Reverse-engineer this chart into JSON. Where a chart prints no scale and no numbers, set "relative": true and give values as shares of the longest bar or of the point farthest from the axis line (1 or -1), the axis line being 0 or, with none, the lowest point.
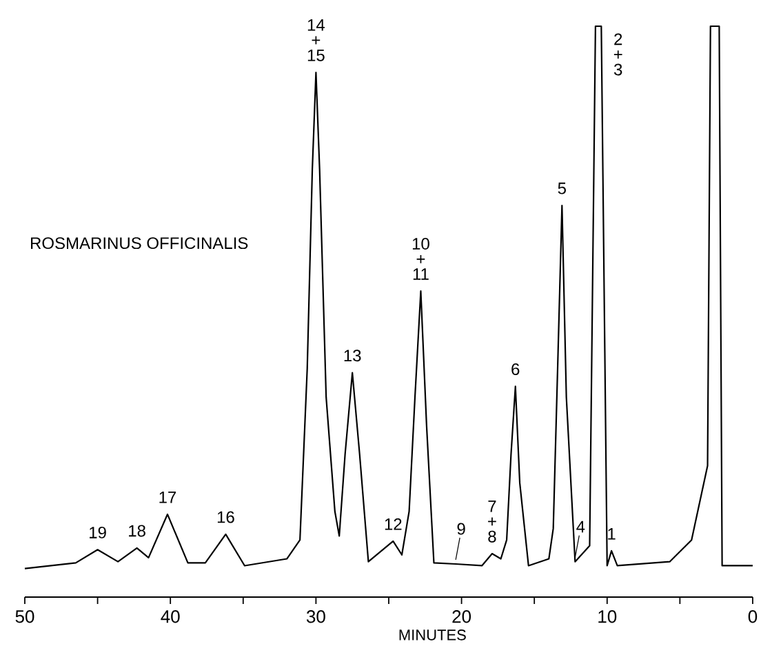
{
  "chart_data": {
    "type": "line",
    "relative": true,
    "title": "ROSMARINUS OFFICINALIS",
    "xlabel": "MINUTES",
    "xlim": [
      50,
      0
    ],
    "xticks": [
      50,
      {
        "value": 45,
        "label": null
      },
      40,
      {
        "value": 35,
        "label": null
      },
      30,
      {
        "value": 25,
        "label": null
      },
      20,
      {
        "value": 15,
        "label": null
      },
      10,
      {
        "value": 5,
        "label": null
      },
      0
    ],
    "series": [
      {
        "color": "#000000",
        "x": [
          50.0,
          46.5,
          45.0,
          43.6,
          42.3,
          41.5,
          40.2,
          38.8,
          37.6,
          36.2,
          34.9,
          32.0,
          31.1,
          30.6,
          30.25,
          30.0,
          29.75,
          29.3,
          28.7,
          28.4,
          28.0,
          27.5,
          27.0,
          26.4,
          24.7,
          24.1,
          23.6,
          23.2,
          22.8,
          22.4,
          21.9,
          20.4,
          18.6,
          17.9,
          17.3,
          16.9,
          16.6,
          16.3,
          16.0,
          15.4,
          14.0,
          13.7,
          13.4,
          13.1,
          12.8,
          12.2,
          11.2,
          10.8,
          10.4,
          10.0,
          9.7,
          9.3,
          5.7,
          4.2,
          3.1,
          2.9,
          2.3,
          2.1,
          0.0
        ],
        "values": [
          0.05,
          0.06,
          0.083,
          0.062,
          0.086,
          0.069,
          0.145,
          0.06,
          0.06,
          0.11,
          0.055,
          0.067,
          0.1,
          0.4,
          0.75,
          0.919,
          0.75,
          0.35,
          0.15,
          0.107,
          0.25,
          0.393,
          0.25,
          0.062,
          0.098,
          0.074,
          0.15,
          0.35,
          0.536,
          0.3,
          0.06,
          0.058,
          0.055,
          0.076,
          0.067,
          0.1,
          0.25,
          0.369,
          0.2,
          0.055,
          0.067,
          0.12,
          0.4,
          0.686,
          0.35,
          0.062,
          0.09,
          1.0,
          1.0,
          0.055,
          0.081,
          0.055,
          0.062,
          0.1,
          0.23,
          1.0,
          1.0,
          0.055,
          0.055
        ]
      }
    ],
    "annotations": [
      {
        "text": "19",
        "x": 45.0,
        "y": 0.083
      },
      {
        "text": "18",
        "x": 42.3,
        "y": 0.086
      },
      {
        "text": "17",
        "x": 40.2,
        "y": 0.145
      },
      {
        "text": "16",
        "x": 36.2,
        "y": 0.11
      },
      {
        "text": "14 + 15",
        "x": 30.0,
        "y": 0.919
      },
      {
        "text": "13",
        "x": 27.5,
        "y": 0.393
      },
      {
        "text": "12",
        "x": 24.7,
        "y": 0.098
      },
      {
        "text": "10 + 11",
        "x": 22.8,
        "y": 0.536
      },
      {
        "text": "9",
        "x": 20.4,
        "y": 0.058
      },
      {
        "text": "7 + 8",
        "x": 17.9,
        "y": 0.076
      },
      {
        "text": "6",
        "x": 16.3,
        "y": 0.369
      },
      {
        "text": "5",
        "x": 13.1,
        "y": 0.686
      },
      {
        "text": "4",
        "x": 12.2,
        "y": 0.062
      },
      {
        "text": "2 + 3",
        "x": 10.4,
        "y": 1.0
      },
      {
        "text": "1",
        "x": 9.7,
        "y": 0.081
      }
    ]
  }
}
